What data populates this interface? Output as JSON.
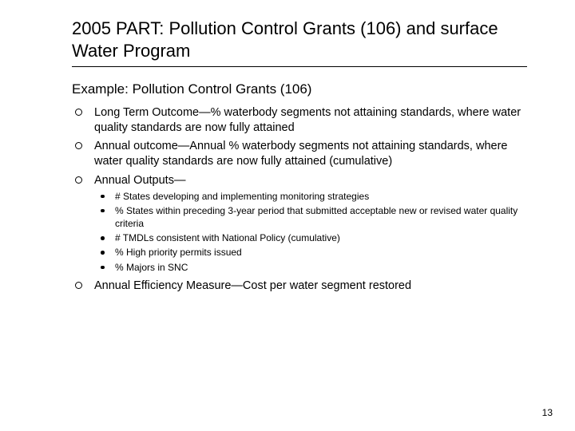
{
  "title": "2005 PART:  Pollution Control Grants (106) and surface Water Program",
  "subtitle": "Example:  Pollution Control Grants (106)",
  "bullets": [
    {
      "text": "Long Term Outcome—% waterbody segments not attaining standards, where water quality standards are now fully attained"
    },
    {
      "text": "Annual outcome—Annual % waterbody segments not attaining standards, where water quality standards are now fully attained (cumulative)"
    },
    {
      "text": "Annual Outputs—",
      "sub": [
        "# States developing and implementing monitoring strategies",
        "% States within preceding 3-year period that submitted acceptable new or revised water quality criteria",
        "# TMDLs consistent with National Policy (cumulative)",
        "% High priority permits issued",
        "% Majors in SNC"
      ]
    },
    {
      "text": "Annual Efficiency Measure—Cost per water segment restored"
    }
  ],
  "pageNumber": "13",
  "colors": {
    "background": "#ffffff",
    "text": "#000000",
    "rule": "#000000"
  },
  "fonts": {
    "family": "Verdana",
    "title_size_pt": 22,
    "subtitle_size_pt": 17,
    "body_size_pt": 14.5,
    "sub_size_pt": 12
  }
}
